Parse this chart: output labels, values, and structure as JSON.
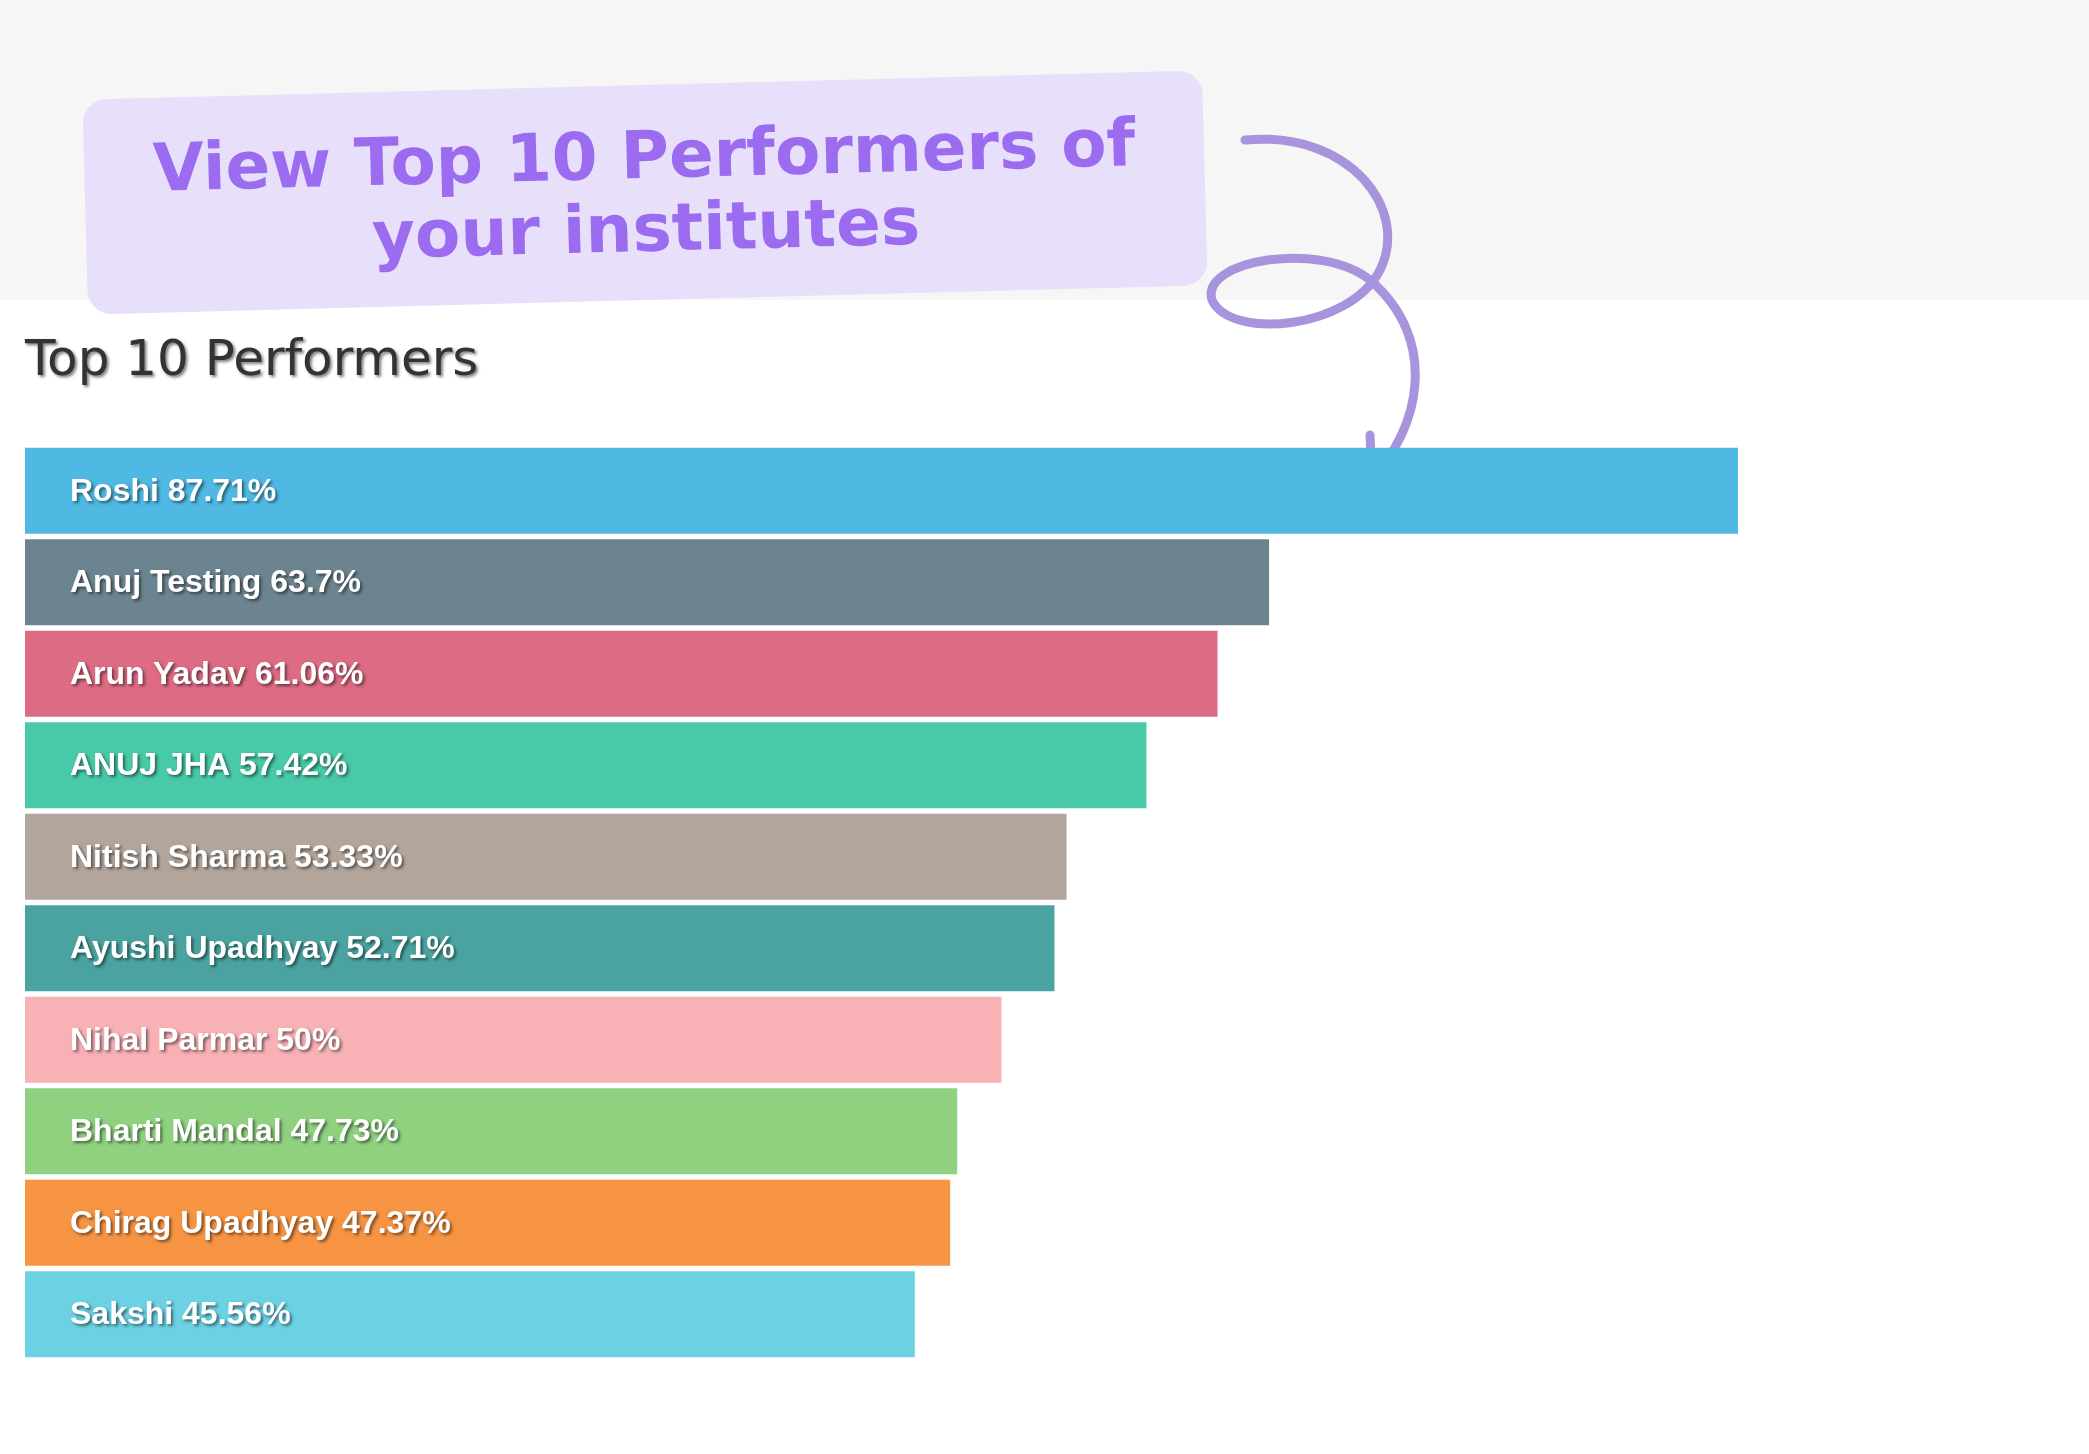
{
  "chart_data": {
    "type": "bar",
    "orientation": "horizontal",
    "title": "Top 10 Performers",
    "annotations": [
      "View Top 10 Performers of your institutes"
    ],
    "categories": [
      "Roshi",
      "Anuj Testing",
      "Arun Yadav",
      "ANUJ JHA",
      "Nitish Sharma",
      "Ayushi Upadhyay",
      "Nihal Parmar",
      "Bharti Mandal",
      "Chirag Upadhyay",
      "Sakshi"
    ],
    "values": [
      87.71,
      63.7,
      61.06,
      57.42,
      53.33,
      52.71,
      50,
      47.73,
      47.37,
      45.56
    ],
    "value_labels": [
      "87.71%",
      "63.7%",
      "61.06%",
      "57.42%",
      "53.33%",
      "52.71%",
      "50%",
      "47.73%",
      "47.37%",
      "45.56%"
    ],
    "colors": [
      "#4fb9e3",
      "#6c848f",
      "#dc6b83",
      "#48c9a8",
      "#b2a59b",
      "#4aa3a0",
      "#f8b1b5",
      "#8fd17f",
      "#f69444",
      "#6bd1e3"
    ],
    "data_labels": true
  }
}
